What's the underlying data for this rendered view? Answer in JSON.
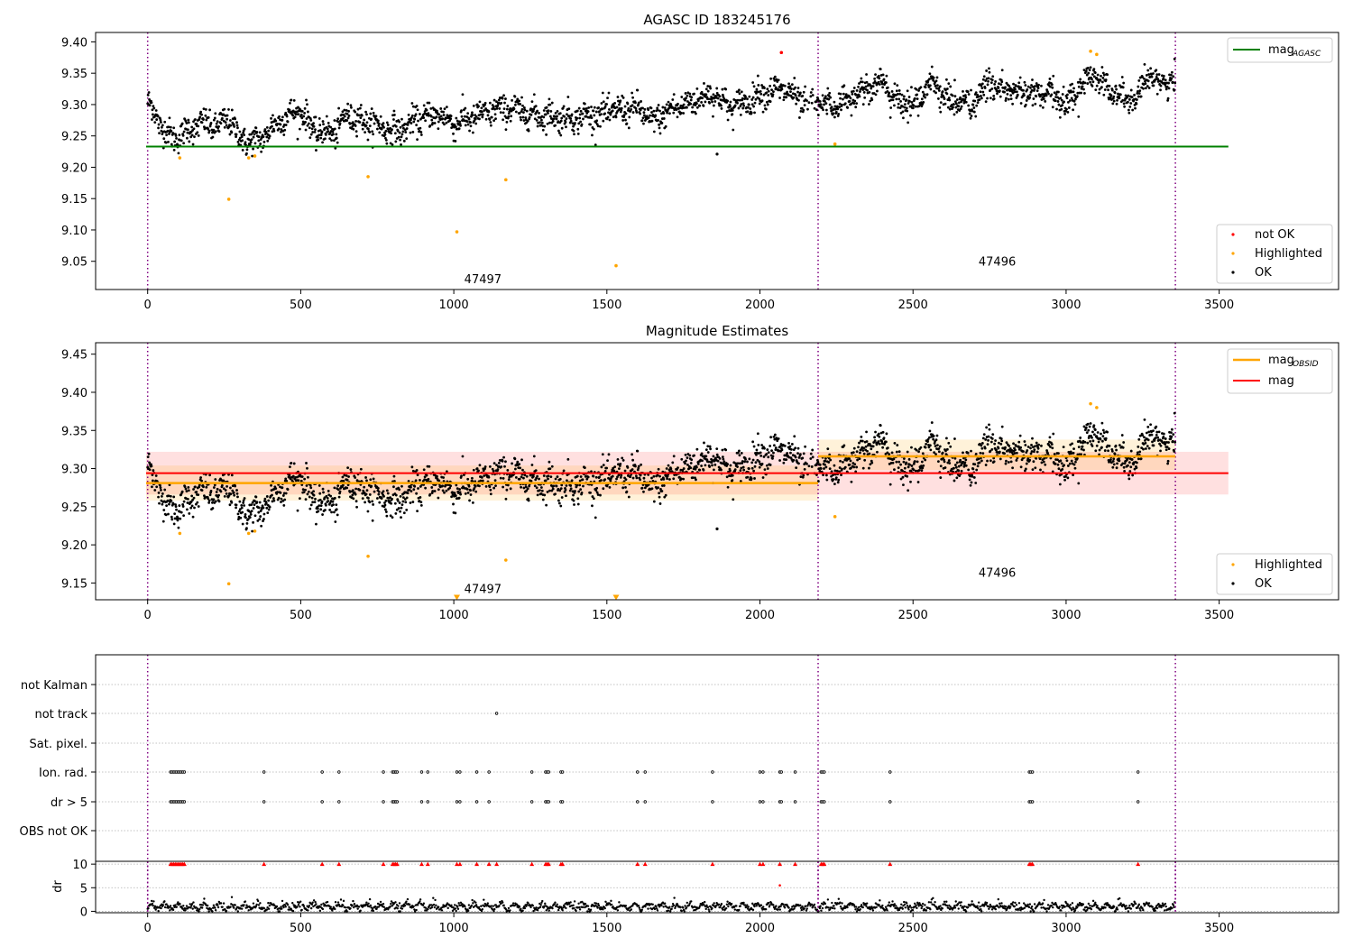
{
  "colors": {
    "ok": "#000000",
    "not_ok": "#ff0000",
    "highlighted": "#ffa500",
    "agasc_line": "#008000",
    "obsid_line": "#ffa500",
    "mag_line": "#ff0000",
    "obsid_band": "#ffa500",
    "mag_band": "#ff0000",
    "obsid_divider": "#800080",
    "grid": "#b0b0b0"
  },
  "chart_data": [
    {
      "type": "scatter",
      "title": "AGASC ID 183245176",
      "xlim": [
        -170,
        3890
      ],
      "ylim": [
        9.005,
        9.415
      ],
      "xticks": [
        0,
        500,
        1000,
        1500,
        2000,
        2500,
        3000,
        3500
      ],
      "yticks": [
        9.05,
        9.1,
        9.15,
        9.2,
        9.25,
        9.3,
        9.35,
        9.4
      ],
      "obsid_boundaries": [
        0,
        2190,
        3357
      ],
      "obsid_labels": [
        {
          "text": "47497",
          "x": 1095,
          "y": 9.022
        },
        {
          "text": "47496",
          "x": 2775,
          "y": 9.05
        }
      ],
      "reference_lines": [
        {
          "name": "mag_AGASC",
          "value": 9.233,
          "x_range": [
            -5,
            3530
          ]
        }
      ],
      "legend": {
        "lines": [
          {
            "label": "mag",
            "sub": "AGASC"
          }
        ],
        "points": [
          "not OK",
          "Highlighted",
          "OK"
        ]
      },
      "highlighted_points": [
        [
          105,
          9.215
        ],
        [
          265,
          9.149
        ],
        [
          330,
          9.215
        ],
        [
          350,
          9.218
        ],
        [
          720,
          9.185
        ],
        [
          1010,
          9.097
        ],
        [
          1170,
          9.18
        ],
        [
          1530,
          9.043
        ],
        [
          2245,
          9.237
        ],
        [
          3080,
          9.385
        ],
        [
          3100,
          9.38
        ]
      ],
      "not_ok_points": [
        [
          2070,
          9.383
        ]
      ],
      "ok_outliers": [
        [
          1860,
          9.221
        ]
      ]
    },
    {
      "type": "scatter",
      "title": "Magnitude Estimates",
      "xlim": [
        -170,
        3890
      ],
      "ylim": [
        9.128,
        9.465
      ],
      "xticks": [
        0,
        500,
        1000,
        1500,
        2000,
        2500,
        3000,
        3500
      ],
      "yticks": [
        9.15,
        9.2,
        9.25,
        9.3,
        9.35,
        9.4,
        9.45
      ],
      "obsid_boundaries": [
        0,
        2190,
        3357
      ],
      "obsid_labels": [
        {
          "text": "47497",
          "x": 1095,
          "y": 9.143
        },
        {
          "text": "47496",
          "x": 2775,
          "y": 9.164
        }
      ],
      "bands": [
        {
          "name": "mag",
          "x_range": [
            -5,
            3530
          ],
          "value": 9.294,
          "lo": 9.266,
          "hi": 9.322
        },
        {
          "name": "mag_OBSID 47497",
          "x_range": [
            -5,
            2190
          ],
          "value": 9.281,
          "lo": 9.258,
          "hi": 9.304
        },
        {
          "name": "mag_OBSID 47496",
          "x_range": [
            2190,
            3357
          ],
          "value": 9.316,
          "lo": 9.298,
          "hi": 9.338
        }
      ],
      "legend": {
        "lines": [
          {
            "label": "mag",
            "sub": "OBSID"
          },
          {
            "label": "mag",
            "sub": ""
          }
        ],
        "points": [
          "Highlighted",
          "OK"
        ]
      },
      "highlighted_points": [
        [
          105,
          9.215
        ],
        [
          265,
          9.149
        ],
        [
          330,
          9.215
        ],
        [
          350,
          9.218
        ],
        [
          720,
          9.185
        ],
        [
          1170,
          9.18
        ],
        [
          2245,
          9.237
        ],
        [
          3080,
          9.385
        ],
        [
          3100,
          9.38
        ]
      ],
      "off_scale_markers": [
        [
          1010,
          9.131
        ],
        [
          1530,
          9.131
        ]
      ],
      "ok_outliers": [
        [
          1860,
          9.221
        ]
      ]
    },
    {
      "type": "scatter",
      "title": "",
      "xlim": [
        -170,
        3890
      ],
      "flag_categories": [
        "not Kalman",
        "not track",
        "Sat. pixel.",
        "Ion. rad.",
        "dr > 5",
        "OBS not OK"
      ],
      "flag_points": {
        "not track": [
          1140
        ],
        "Ion. rad.": [
          75,
          80,
          85,
          90,
          95,
          100,
          105,
          110,
          115,
          120,
          380,
          570,
          625,
          770,
          800,
          805,
          810,
          815,
          895,
          915,
          1010,
          1020,
          1075,
          1115,
          1255,
          1300,
          1305,
          1310,
          1350,
          1355,
          1600,
          1625,
          1845,
          2000,
          2010,
          2065,
          2070,
          2115,
          2200,
          2205,
          2210,
          2425,
          2880,
          2885,
          2890,
          3235
        ],
        "dr > 5": [
          75,
          80,
          85,
          90,
          95,
          100,
          105,
          110,
          115,
          120,
          380,
          570,
          625,
          770,
          800,
          805,
          810,
          815,
          895,
          915,
          1010,
          1020,
          1075,
          1115,
          1255,
          1300,
          1305,
          1310,
          1350,
          1355,
          1600,
          1625,
          1845,
          2000,
          2010,
          2065,
          2070,
          2115,
          2200,
          2205,
          2210,
          2425,
          2880,
          2885,
          2890,
          3235
        ]
      },
      "dr_panel": {
        "ylabel": "dr",
        "yticks": [
          0,
          5,
          10
        ],
        "ylim": [
          -0.3,
          10.6
        ],
        "clipped_value": 10,
        "clipped_x": [
          75,
          80,
          85,
          90,
          95,
          100,
          105,
          110,
          115,
          120,
          380,
          570,
          625,
          770,
          800,
          805,
          810,
          815,
          895,
          915,
          1010,
          1020,
          1075,
          1115,
          1140,
          1255,
          1300,
          1305,
          1310,
          1350,
          1355,
          1600,
          1625,
          1845,
          2000,
          2010,
          2065,
          2115,
          2200,
          2205,
          2210,
          2425,
          2880,
          2885,
          2890,
          3235
        ],
        "extra_points": [
          [
            2065,
            5.5
          ]
        ]
      },
      "xticks": [
        0,
        500,
        1000,
        1500,
        2000,
        2500,
        3000,
        3500
      ],
      "obsid_boundaries": [
        0,
        2190,
        3357
      ]
    }
  ]
}
